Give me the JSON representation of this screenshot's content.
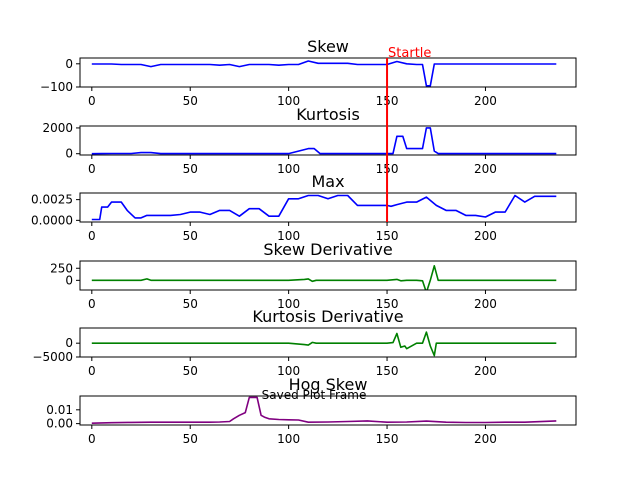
{
  "figure": {
    "background": "#ffffff"
  },
  "chart_data": [
    {
      "type": "line",
      "title": "Skew",
      "xlabel": "",
      "ylabel": "",
      "color": "#0000ff",
      "xlim": [
        -6,
        246
      ],
      "ylim": [
        -100,
        25
      ],
      "xticks": [
        0,
        50,
        100,
        150,
        200
      ],
      "yticks": [
        -100,
        0
      ],
      "ytick_labels": [
        "−100",
        "0"
      ],
      "x": [
        0,
        10,
        15,
        25,
        30,
        35,
        45,
        60,
        65,
        70,
        75,
        80,
        90,
        95,
        100,
        105,
        110,
        115,
        130,
        135,
        140,
        145,
        150,
        155,
        160,
        165,
        168,
        170,
        172,
        174,
        176,
        180,
        200,
        236
      ],
      "values": [
        -1,
        -1,
        -3,
        -3,
        -12,
        -3,
        -3,
        -3,
        -6,
        -3,
        -12,
        -3,
        -3,
        -6,
        -3,
        -3,
        12,
        2,
        2,
        -3,
        -3,
        -3,
        -3,
        10,
        0,
        -3,
        -3,
        -95,
        -95,
        -1,
        -1,
        -1,
        -1,
        -1
      ]
    },
    {
      "type": "line",
      "title": "Kurtosis",
      "xlabel": "",
      "ylabel": "",
      "color": "#0000ff",
      "xlim": [
        -6,
        246
      ],
      "ylim": [
        -100,
        2150
      ],
      "xticks": [
        0,
        50,
        100,
        150,
        200
      ],
      "yticks": [
        0,
        2000
      ],
      "ytick_labels": [
        "0",
        "2000"
      ],
      "x": [
        0,
        5,
        10,
        20,
        25,
        30,
        35,
        60,
        100,
        110,
        113,
        116,
        130,
        150,
        153,
        155,
        158,
        160,
        165,
        168,
        170,
        172,
        174,
        176,
        180,
        200,
        236
      ],
      "values": [
        0,
        10,
        20,
        20,
        90,
        90,
        10,
        10,
        10,
        400,
        400,
        10,
        10,
        10,
        10,
        1350,
        1350,
        400,
        400,
        400,
        2000,
        2000,
        200,
        10,
        10,
        10,
        10
      ]
    },
    {
      "type": "line",
      "title": "Max",
      "xlabel": "",
      "ylabel": "",
      "color": "#0000ff",
      "xlim": [
        -6,
        246
      ],
      "ylim": [
        -0.0002,
        0.0033
      ],
      "xticks": [
        0,
        50,
        100,
        150,
        200
      ],
      "yticks": [
        0,
        0.0025
      ],
      "ytick_labels": [
        "0.0000",
        "0.0025"
      ],
      "x": [
        0,
        4,
        5,
        8,
        10,
        15,
        18,
        22,
        25,
        28,
        30,
        35,
        40,
        45,
        50,
        55,
        60,
        65,
        70,
        75,
        80,
        85,
        90,
        95,
        100,
        105,
        110,
        115,
        120,
        125,
        130,
        135,
        140,
        145,
        150,
        152,
        155,
        160,
        165,
        170,
        175,
        180,
        185,
        190,
        195,
        200,
        205,
        210,
        215,
        220,
        225,
        236
      ],
      "values": [
        0.0001,
        0.0001,
        0.0016,
        0.0016,
        0.0022,
        0.0022,
        0.0012,
        0.0003,
        0.0003,
        0.0006,
        0.0006,
        0.0006,
        0.0006,
        0.0007,
        0.001,
        0.001,
        0.0007,
        0.0012,
        0.0012,
        0.0005,
        0.0014,
        0.0014,
        0.0005,
        0.0005,
        0.0026,
        0.0026,
        0.003,
        0.003,
        0.0026,
        0.003,
        0.003,
        0.0018,
        0.0018,
        0.0018,
        0.0018,
        0.0017,
        0.0019,
        0.0022,
        0.0022,
        0.0028,
        0.0018,
        0.0012,
        0.0012,
        0.0006,
        0.0006,
        0.0004,
        0.001,
        0.001,
        0.003,
        0.0022,
        0.0029,
        0.0029
      ]
    },
    {
      "type": "line",
      "title": "Skew Derivative",
      "xlabel": "",
      "ylabel": "",
      "color": "#008000",
      "xlim": [
        -6,
        246
      ],
      "ylim": [
        -200,
        400
      ],
      "xticks": [
        0,
        50,
        100,
        150,
        200
      ],
      "yticks": [
        0,
        250
      ],
      "ytick_labels": [
        "0",
        "250"
      ],
      "x": [
        0,
        25,
        28,
        30,
        100,
        108,
        110,
        112,
        114,
        150,
        155,
        157,
        160,
        165,
        168,
        170,
        172,
        174,
        176,
        180,
        236
      ],
      "values": [
        0,
        0,
        30,
        0,
        0,
        20,
        30,
        -20,
        0,
        0,
        20,
        -10,
        0,
        0,
        -10,
        -250,
        0,
        300,
        0,
        0,
        0
      ]
    },
    {
      "type": "line",
      "title": "Kurtosis Derivative",
      "xlabel": "",
      "ylabel": "",
      "color": "#008000",
      "xlim": [
        -6,
        246
      ],
      "ylim": [
        -5000,
        5500
      ],
      "xticks": [
        0,
        50,
        100,
        150,
        200
      ],
      "yticks": [
        -5000,
        0
      ],
      "ytick_labels": [
        "−5000",
        "0"
      ],
      "x": [
        0,
        100,
        108,
        110,
        112,
        114,
        150,
        153,
        155,
        157,
        159,
        160,
        165,
        168,
        170,
        172,
        174,
        175,
        178,
        236
      ],
      "values": [
        0,
        0,
        -500,
        -700,
        300,
        0,
        0,
        200,
        3500,
        -1500,
        -1000,
        -2000,
        0,
        0,
        4000,
        -1000,
        -4500,
        0,
        0,
        0
      ]
    },
    {
      "type": "line",
      "title": "Hog Skew",
      "xlabel": "",
      "ylabel": "",
      "color": "#800080",
      "xlim": [
        -6,
        246
      ],
      "ylim": [
        -0.001,
        0.02
      ],
      "xticks": [
        0,
        50,
        100,
        150,
        200
      ],
      "yticks": [
        0,
        0.01
      ],
      "ytick_labels": [
        "0.00",
        "0.01"
      ],
      "x": [
        0,
        5,
        10,
        20,
        30,
        40,
        50,
        60,
        65,
        70,
        72,
        75,
        78,
        80,
        82,
        84,
        86,
        88,
        90,
        95,
        100,
        105,
        110,
        120,
        130,
        140,
        150,
        160,
        170,
        180,
        190,
        200,
        210,
        220,
        236
      ],
      "values": [
        0.0003,
        0.0005,
        0.0007,
        0.0009,
        0.001,
        0.001,
        0.001,
        0.001,
        0.0012,
        0.0015,
        0.0035,
        0.006,
        0.008,
        0.019,
        0.019,
        0.019,
        0.006,
        0.0045,
        0.0035,
        0.003,
        0.0028,
        0.0026,
        0.001,
        0.0012,
        0.0015,
        0.002,
        0.001,
        0.0012,
        0.0018,
        0.001,
        0.0008,
        0.0008,
        0.001,
        0.001,
        0.002
      ]
    }
  ],
  "annotations": {
    "startle": {
      "label": "Startle",
      "x": 150,
      "color": "#ff0000"
    },
    "saved_label": "Saved Plot Frame"
  }
}
